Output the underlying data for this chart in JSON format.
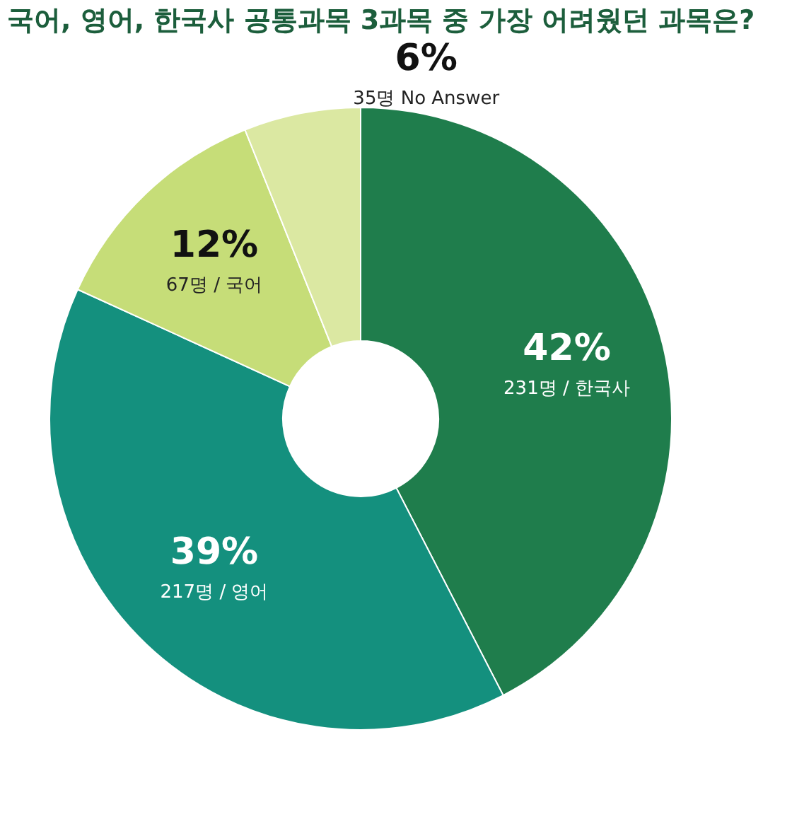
{
  "chart_data": {
    "type": "donut",
    "title": "국어, 영어, 한국사 공통과목 3과목 중 가장 어려웠던 과목은?",
    "categories": [
      "231명 / 한국사",
      "217명 / 영어",
      "67명 / 국어",
      "35명 No Answer"
    ],
    "values": [
      42,
      39,
      12,
      6
    ],
    "value_labels": [
      "42%",
      "39%",
      "12%",
      "6%"
    ],
    "colors": [
      "#1f7d4c",
      "#14907e",
      "#c6dd78",
      "#dbe8a2"
    ],
    "legend": false
  }
}
